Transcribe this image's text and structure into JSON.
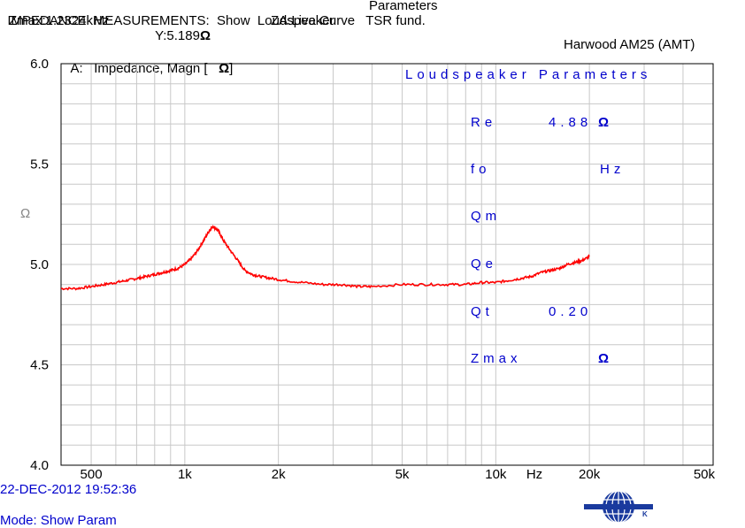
{
  "header": {
    "line1_a": "IMPEDANCE  MEASUREMENTS:  Show  Loudspeaker",
    "line1_b": "Parameters",
    "line2_a": "Zmax:1.2324kHz",
    "line2_b": "Y:5.189",
    "line2_c": "ZA:Live Curve   TSR fund.",
    "ohm": "Ω"
  },
  "plot_title": "A:   Impedance, Magn [   ",
  "plot_title_unit": "Ω",
  "plot_title_close": "]",
  "device": "Harwood AM25 (AMT)",
  "y_unit": "Ω",
  "params": {
    "heading": "Loudspeaker  Parameters",
    "re_label": "Re",
    "re_value": "4.88",
    "fo_label": "fo",
    "fo_unit": "Hz",
    "qm_label": "Qm",
    "qe_label": "Qe",
    "qt_label": "Qt",
    "qt_value": "0.20",
    "zmax_label": "Zmax",
    "ohm": "Ω"
  },
  "footer": {
    "timestamp": "22-DEC-2012 19:52:36",
    "mode": "Mode: Show Param"
  },
  "logo": {
    "left": "B",
    "right": "K"
  },
  "colors": {
    "curve": "#ff0000",
    "text_blue": "#0000cc",
    "grid": "#c8c8c8"
  },
  "chart_data": {
    "type": "line",
    "xscale": "log",
    "xlim": [
      400,
      50000
    ],
    "ylim": [
      4.0,
      6.0
    ],
    "x_unit": "Hz",
    "x_ticks": [
      {
        "value": 500,
        "label": "500"
      },
      {
        "value": 1000,
        "label": "1k"
      },
      {
        "value": 2000,
        "label": "2k"
      },
      {
        "value": 5000,
        "label": "5k"
      },
      {
        "value": 10000,
        "label": "10k"
      },
      {
        "value": 20000,
        "label": "20k"
      },
      {
        "value": 50000,
        "label": "50k"
      }
    ],
    "y_ticks": [
      {
        "value": 6.0,
        "label": "6.0"
      },
      {
        "value": 5.5,
        "label": "5.5"
      },
      {
        "value": 5.0,
        "label": "5.0"
      },
      {
        "value": 4.5,
        "label": "4.5"
      },
      {
        "value": 4.0,
        "label": "4.0"
      }
    ],
    "grid": true,
    "series": [
      {
        "x": [
          400,
          450,
          500,
          550,
          600,
          650,
          700,
          750,
          800,
          850,
          900,
          950,
          1000,
          1050,
          1100,
          1150,
          1200,
          1232,
          1280,
          1330,
          1400,
          1480,
          1560,
          1650,
          1750,
          1900,
          2100,
          2400,
          2800,
          3200,
          3600,
          4000,
          5000,
          6000,
          7000,
          8000,
          9000,
          10000,
          11000,
          12000,
          13000,
          14000,
          15000,
          16000,
          17000,
          18000,
          19000,
          20000
        ],
        "y": [
          4.88,
          4.88,
          4.89,
          4.9,
          4.91,
          4.92,
          4.93,
          4.94,
          4.95,
          4.96,
          4.97,
          4.98,
          5.0,
          5.03,
          5.07,
          5.12,
          5.17,
          5.189,
          5.17,
          5.12,
          5.07,
          5.02,
          4.97,
          4.95,
          4.94,
          4.93,
          4.92,
          4.91,
          4.9,
          4.9,
          4.89,
          4.89,
          4.9,
          4.9,
          4.9,
          4.9,
          4.91,
          4.91,
          4.92,
          4.93,
          4.94,
          4.96,
          4.97,
          4.98,
          5.0,
          5.01,
          5.02,
          5.04
        ]
      }
    ]
  }
}
